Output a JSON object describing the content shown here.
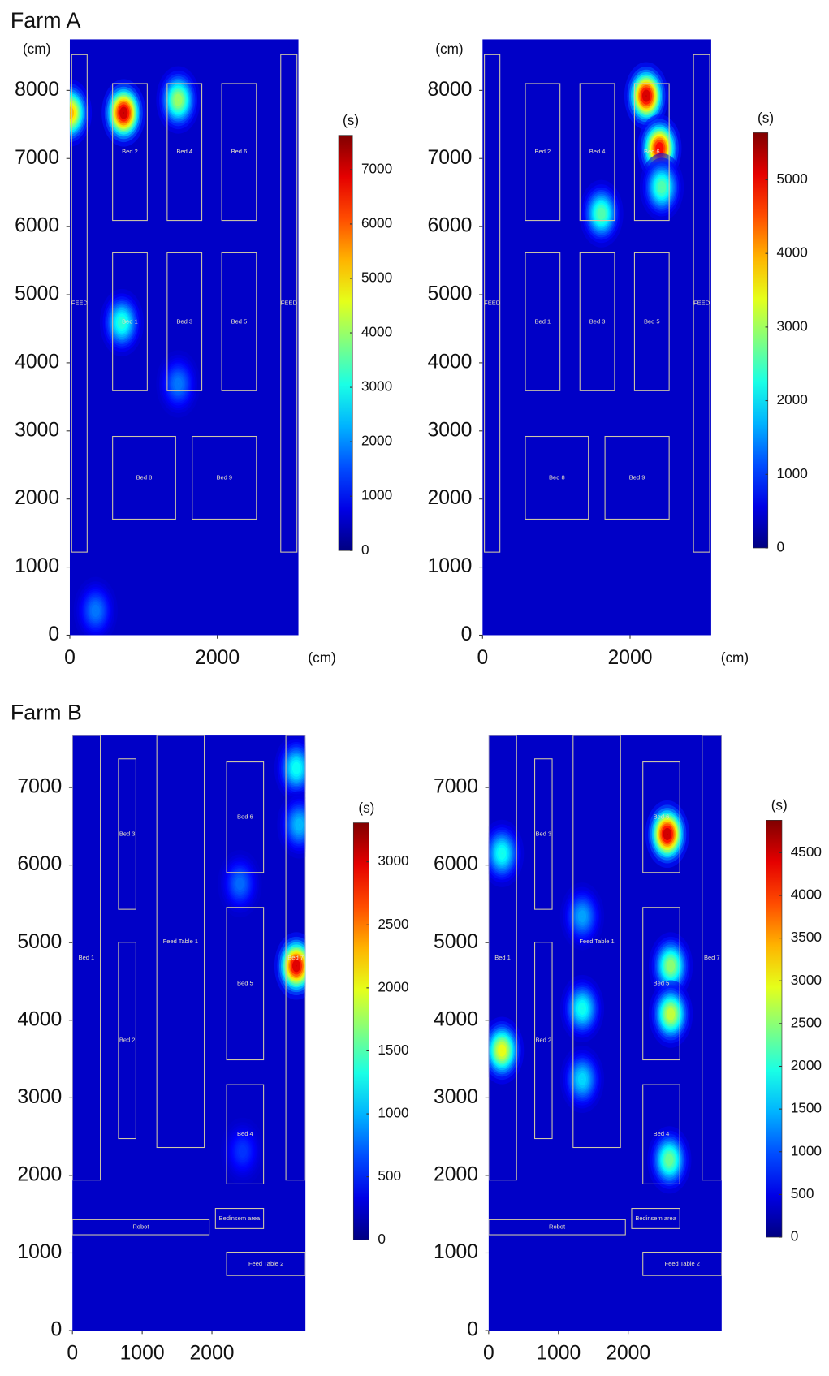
{
  "chart_data": [
    {
      "type": "heatmap",
      "title": "Farm A",
      "xlabel": "(cm)",
      "ylabel": "(cm)",
      "colorbar_label": "(s)",
      "xlim": [
        0,
        3100
      ],
      "ylim": [
        0,
        8750
      ],
      "xticks": [
        0,
        2000
      ],
      "yticks": [
        0,
        1000,
        2000,
        3000,
        4000,
        5000,
        6000,
        7000,
        8000
      ],
      "zlim": [
        0,
        7630
      ],
      "zticks": [
        0,
        1000,
        2000,
        3000,
        4000,
        5000,
        6000,
        7000
      ],
      "x": [
        730,
        1470,
        705,
        1470,
        0,
        350
      ],
      "y": [
        7670,
        7860,
        4590,
        3690,
        7670,
        360
      ],
      "values": [
        7500,
        4000,
        3000,
        1500,
        5500,
        1500
      ],
      "regions": [
        {
          "label": "Bed 2",
          "xlim": [
            580,
            1050
          ],
          "ylim": [
            6090,
            8100
          ]
        },
        {
          "label": "Bed 4",
          "xlim": [
            1320,
            1790
          ],
          "ylim": [
            6090,
            8100
          ]
        },
        {
          "label": "Bed 6",
          "xlim": [
            2060,
            2530
          ],
          "ylim": [
            6090,
            8100
          ]
        },
        {
          "label": "Bed 1",
          "xlim": [
            580,
            1050
          ],
          "ylim": [
            3590,
            5615
          ]
        },
        {
          "label": "Bed 3",
          "xlim": [
            1320,
            1790
          ],
          "ylim": [
            3590,
            5615
          ]
        },
        {
          "label": "Bed 5",
          "xlim": [
            2060,
            2530
          ],
          "ylim": [
            3590,
            5615
          ]
        },
        {
          "label": "Bed 8",
          "xlim": [
            580,
            1435
          ],
          "ylim": [
            1705,
            2920
          ]
        },
        {
          "label": "Bed 9",
          "xlim": [
            1660,
            2530
          ],
          "ylim": [
            1705,
            2920
          ]
        },
        {
          "label": "FEED",
          "xlim": [
            25,
            235
          ],
          "ylim": [
            1220,
            8525
          ]
        },
        {
          "label": "FEED",
          "xlim": [
            2860,
            3080
          ],
          "ylim": [
            1220,
            8525
          ]
        }
      ]
    },
    {
      "type": "heatmap",
      "xlabel": "(cm)",
      "ylabel": "(cm)",
      "colorbar_label": "(s)",
      "xlim": [
        0,
        3100
      ],
      "ylim": [
        0,
        8750
      ],
      "xticks": [
        0,
        2000
      ],
      "yticks": [
        0,
        1000,
        2000,
        3000,
        4000,
        5000,
        6000,
        7000,
        8000
      ],
      "zlim": [
        0,
        5640
      ],
      "zticks": [
        0,
        1000,
        2000,
        3000,
        4000,
        5000
      ],
      "x": [
        2220,
        2400,
        1610,
        2430
      ],
      "y": [
        7920,
        7150,
        6190,
        6580
      ],
      "values": [
        5500,
        5200,
        2500,
        2500
      ],
      "regions": [
        {
          "label": "Bed 2",
          "xlim": [
            580,
            1050
          ],
          "ylim": [
            6090,
            8100
          ]
        },
        {
          "label": "Bed 4",
          "xlim": [
            1320,
            1790
          ],
          "ylim": [
            6090,
            8100
          ]
        },
        {
          "label": "Bed 6",
          "xlim": [
            2060,
            2530
          ],
          "ylim": [
            6090,
            8100
          ]
        },
        {
          "label": "Bed 1",
          "xlim": [
            580,
            1050
          ],
          "ylim": [
            3590,
            5615
          ]
        },
        {
          "label": "Bed 3",
          "xlim": [
            1320,
            1790
          ],
          "ylim": [
            3590,
            5615
          ]
        },
        {
          "label": "Bed 5",
          "xlim": [
            2060,
            2530
          ],
          "ylim": [
            3590,
            5615
          ]
        },
        {
          "label": "Bed 8",
          "xlim": [
            580,
            1435
          ],
          "ylim": [
            1705,
            2920
          ]
        },
        {
          "label": "Bed 9",
          "xlim": [
            1660,
            2530
          ],
          "ylim": [
            1705,
            2920
          ]
        },
        {
          "label": "FEED",
          "xlim": [
            25,
            235
          ],
          "ylim": [
            1220,
            8525
          ]
        },
        {
          "label": "FEED",
          "xlim": [
            2860,
            3080
          ],
          "ylim": [
            1220,
            8525
          ]
        }
      ]
    },
    {
      "type": "heatmap",
      "title": "Farm B",
      "colorbar_label": "(s)",
      "xlim": [
        0,
        3340
      ],
      "ylim": [
        0,
        7670
      ],
      "xticks": [
        0,
        1000,
        2000
      ],
      "yticks": [
        0,
        1000,
        2000,
        3000,
        4000,
        5000,
        6000,
        7000
      ],
      "zlim": [
        0,
        3310
      ],
      "zticks": [
        0,
        500,
        1000,
        1500,
        2000,
        2500,
        3000
      ],
      "x": [
        3210,
        3210,
        3250,
        2400,
        2440
      ],
      "y": [
        4700,
        7250,
        6520,
        5760,
        2310
      ],
      "values": [
        3200,
        1200,
        900,
        600,
        400
      ],
      "regions": [
        {
          "label": "Bed 1",
          "xlim": [
            0,
            400
          ],
          "ylim": [
            1940,
            7670
          ]
        },
        {
          "label": "Bed 3",
          "xlim": [
            660,
            910
          ],
          "ylim": [
            5430,
            7370
          ]
        },
        {
          "label": "Bed 2",
          "xlim": [
            660,
            910
          ],
          "ylim": [
            2475,
            5005
          ]
        },
        {
          "label": "Feed Table 1",
          "xlim": [
            1210,
            1890
          ],
          "ylim": [
            2360,
            7670
          ]
        },
        {
          "label": "Bed 6",
          "xlim": [
            2210,
            2740
          ],
          "ylim": [
            5905,
            7330
          ]
        },
        {
          "label": "Bed 5",
          "xlim": [
            2210,
            2740
          ],
          "ylim": [
            3490,
            5455
          ]
        },
        {
          "label": "Bed 4",
          "xlim": [
            2210,
            2740
          ],
          "ylim": [
            1890,
            3170
          ]
        },
        {
          "label": "Bed 7",
          "xlim": [
            3060,
            3340
          ],
          "ylim": [
            1940,
            7670
          ]
        },
        {
          "label": "Robot",
          "xlim": [
            0,
            1960
          ],
          "ylim": [
            1235,
            1430
          ]
        },
        {
          "label": "Bedinsem area",
          "xlim": [
            2050,
            2740
          ],
          "ylim": [
            1315,
            1575
          ]
        },
        {
          "label": "Feed Table 2",
          "xlim": [
            2210,
            3340
          ],
          "ylim": [
            710,
            1010
          ]
        }
      ]
    },
    {
      "type": "heatmap",
      "colorbar_label": "(s)",
      "xlim": [
        0,
        3340
      ],
      "ylim": [
        0,
        7670
      ],
      "xticks": [
        0,
        1000,
        2000
      ],
      "yticks": [
        0,
        1000,
        2000,
        3000,
        4000,
        5000,
        6000,
        7000
      ],
      "zlim": [
        0,
        4880
      ],
      "zticks": [
        0,
        500,
        1000,
        1500,
        2000,
        2500,
        3000,
        3500,
        4000,
        4500
      ],
      "x": [
        2560,
        190,
        190,
        2610,
        2610,
        2590,
        1340,
        1340,
        1340
      ],
      "y": [
        6400,
        3610,
        6150,
        4700,
        4080,
        2200,
        4150,
        3240,
        5340
      ],
      "values": [
        4800,
        3000,
        1800,
        2500,
        2800,
        2300,
        1800,
        1500,
        1200
      ],
      "regions": [
        {
          "label": "Bed 1",
          "xlim": [
            0,
            400
          ],
          "ylim": [
            1940,
            7670
          ]
        },
        {
          "label": "Bed 3",
          "xlim": [
            660,
            910
          ],
          "ylim": [
            5430,
            7370
          ]
        },
        {
          "label": "Bed 2",
          "xlim": [
            660,
            910
          ],
          "ylim": [
            2475,
            5005
          ]
        },
        {
          "label": "Feed Table 1",
          "xlim": [
            1210,
            1890
          ],
          "ylim": [
            2360,
            7670
          ]
        },
        {
          "label": "Bed 6",
          "xlim": [
            2210,
            2740
          ],
          "ylim": [
            5905,
            7330
          ]
        },
        {
          "label": "Bed 5",
          "xlim": [
            2210,
            2740
          ],
          "ylim": [
            3490,
            5455
          ]
        },
        {
          "label": "Bed 4",
          "xlim": [
            2210,
            2740
          ],
          "ylim": [
            1890,
            3170
          ]
        },
        {
          "label": "Bed 7",
          "xlim": [
            3060,
            3340
          ],
          "ylim": [
            1940,
            7670
          ]
        },
        {
          "label": "Robot",
          "xlim": [
            0,
            1960
          ],
          "ylim": [
            1235,
            1430
          ]
        },
        {
          "label": "Bedinsem area",
          "xlim": [
            2050,
            2740
          ],
          "ylim": [
            1315,
            1575
          ]
        },
        {
          "label": "Feed Table 2",
          "xlim": [
            2210,
            3340
          ],
          "ylim": [
            710,
            1010
          ]
        }
      ]
    }
  ]
}
